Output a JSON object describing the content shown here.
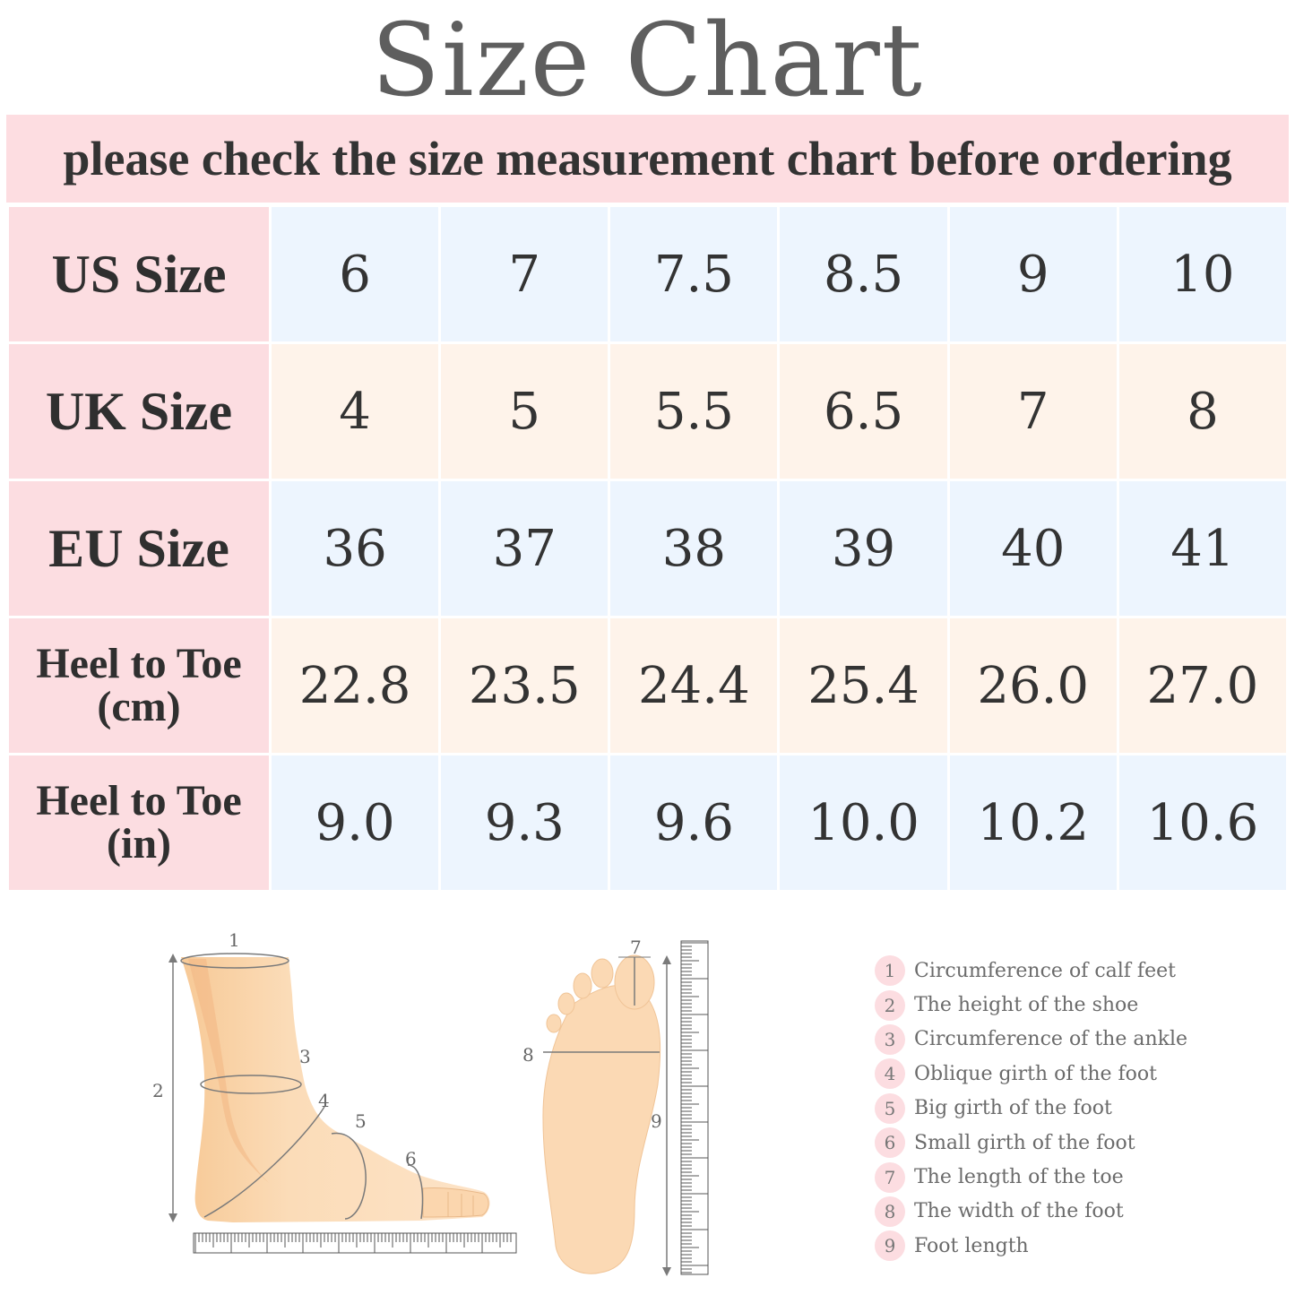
{
  "title": "Size  Chart",
  "subtitle": "please check the size measurement chart before ordering",
  "table": {
    "rows": [
      {
        "label_lines": [
          "US Size"
        ],
        "values": [
          "6",
          "7",
          "7.5",
          "8.5",
          "9",
          "10"
        ],
        "shade": "blue"
      },
      {
        "label_lines": [
          "UK Size"
        ],
        "values": [
          "4",
          "5",
          "5.5",
          "6.5",
          "7",
          "8"
        ],
        "shade": "peach"
      },
      {
        "label_lines": [
          "EU Size"
        ],
        "values": [
          "36",
          "37",
          "38",
          "39",
          "40",
          "41"
        ],
        "shade": "blue"
      },
      {
        "label_lines": [
          "Heel to Toe",
          "(cm)"
        ],
        "values": [
          "22.8",
          "23.5",
          "24.4",
          "25.4",
          "26.0",
          "27.0"
        ],
        "shade": "peach"
      },
      {
        "label_lines": [
          "Heel to Toe",
          "(in)"
        ],
        "values": [
          "9.0",
          "9.3",
          "9.6",
          "10.0",
          "10.2",
          "10.6"
        ],
        "shade": "blue"
      }
    ]
  },
  "diagram_numbers": {
    "n1": "1",
    "n2": "2",
    "n3": "3",
    "n4": "4",
    "n5": "5",
    "n6": "6",
    "n7": "7",
    "n8": "8",
    "n9": "9"
  },
  "legend": [
    {
      "num": "1",
      "label": "Circumference of calf feet"
    },
    {
      "num": "2",
      "label": "The height of the shoe"
    },
    {
      "num": "3",
      "label": "Circumference of the ankle"
    },
    {
      "num": "4",
      "label": "Oblique girth of the foot"
    },
    {
      "num": "5",
      "label": "Big girth of the foot"
    },
    {
      "num": "6",
      "label": "Small girth of the foot"
    },
    {
      "num": "7",
      "label": "The length of the toe"
    },
    {
      "num": "8",
      "label": "The width of the foot"
    },
    {
      "num": "9",
      "label": "Foot length"
    }
  ],
  "colors": {
    "header_pink": "#fcdde1",
    "row_blue": "#edf5fe",
    "row_peach": "#fef3ea",
    "skin": "#fbd9b4",
    "skin_shadow": "#f6c08e"
  }
}
